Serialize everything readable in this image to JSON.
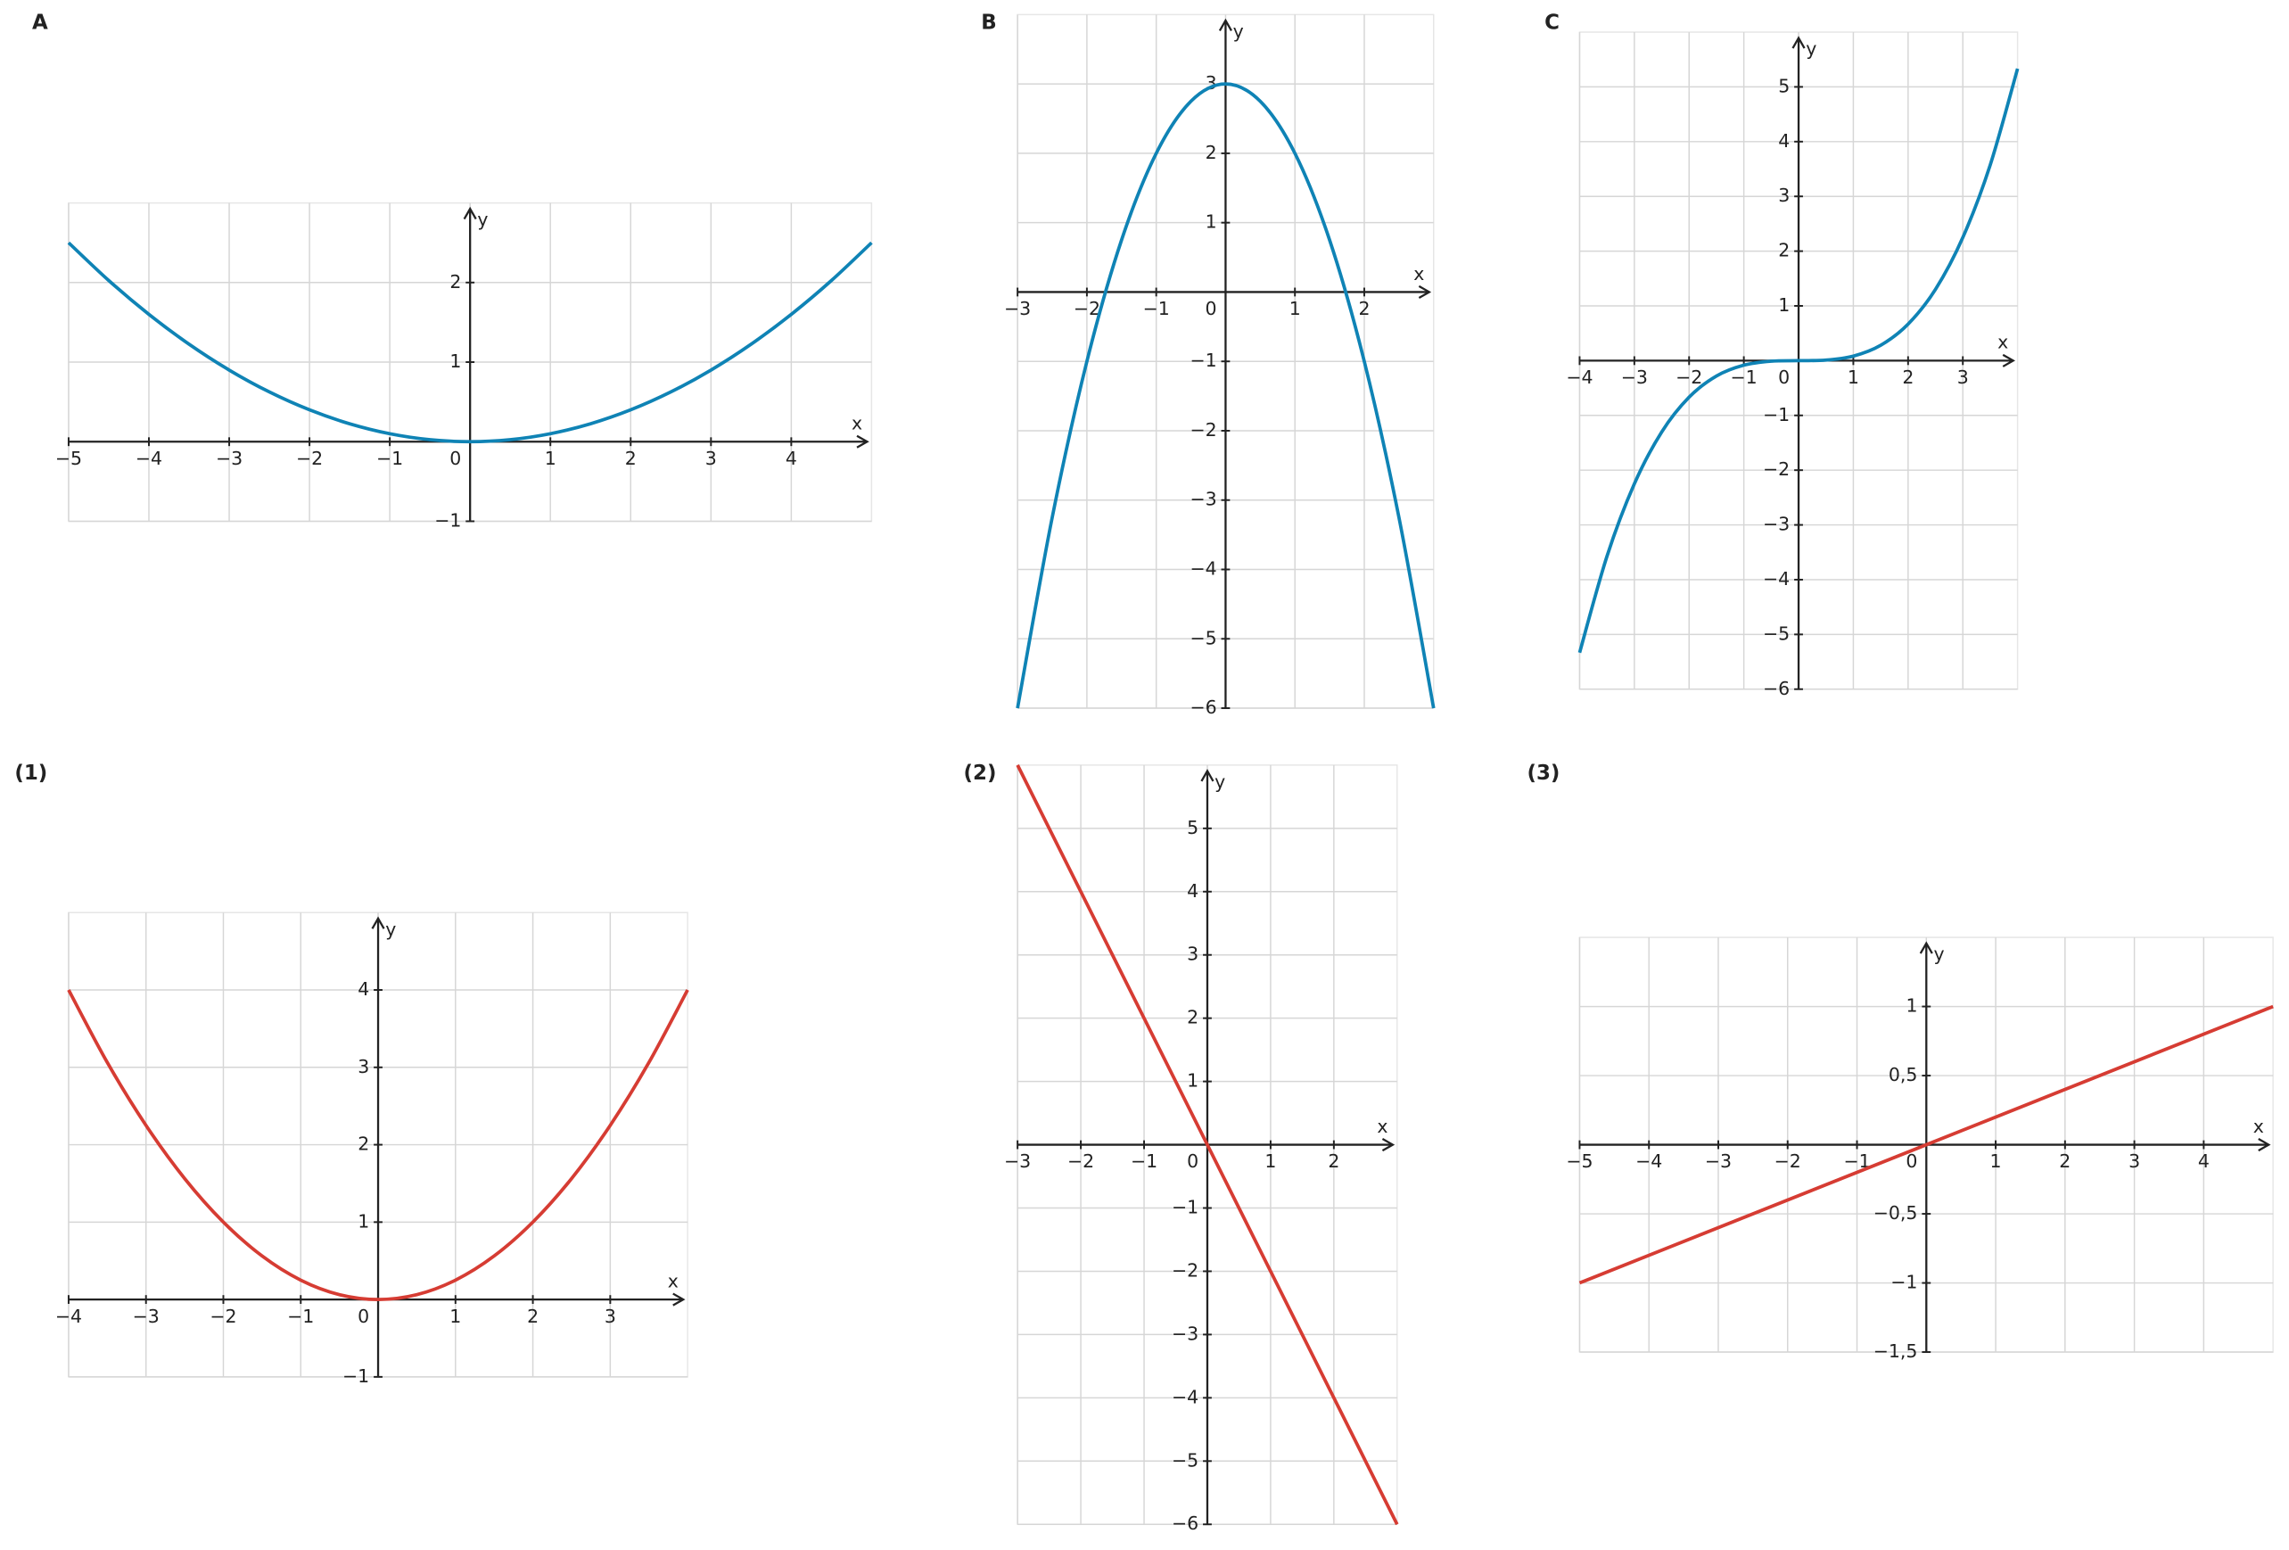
{
  "chart_data": [
    {
      "type": "line",
      "title": "A",
      "xlabel": "x",
      "ylabel": "y",
      "xlim": [
        -5,
        5
      ],
      "ylim": [
        -1,
        3
      ],
      "xticks": [
        {
          "value": -5,
          "label": "−5"
        },
        {
          "value": -4,
          "label": "−4"
        },
        {
          "value": -3,
          "label": "−3"
        },
        {
          "value": -2,
          "label": "−2"
        },
        {
          "value": -1,
          "label": "−1"
        },
        0,
        1,
        2,
        3,
        4
      ],
      "yticks": [
        {
          "value": -1,
          "label": "−1"
        },
        1,
        2
      ],
      "grid": true,
      "series": [
        {
          "color": "#0f83b5",
          "x": [
            -5,
            -4.5,
            -4,
            -3.5,
            -3,
            -2.5,
            -2,
            -1.5,
            -1,
            -0.5,
            0,
            0.5,
            1,
            1.5,
            2,
            2.5,
            3,
            3.5,
            4,
            4.5,
            5
          ],
          "values": [
            2.5,
            2.025,
            1.6,
            1.225,
            0.9,
            0.625,
            0.4,
            0.225,
            0.1,
            0.025,
            0,
            0.025,
            0.1,
            0.225,
            0.4,
            0.625,
            0.9,
            1.225,
            1.6,
            2.025,
            2.5
          ]
        }
      ]
    },
    {
      "type": "line",
      "title": "B",
      "xlabel": "x",
      "ylabel": "y",
      "xlim": [
        -3,
        3
      ],
      "ylim": [
        -6,
        4
      ],
      "xticks": [
        {
          "value": -3,
          "label": "−3"
        },
        {
          "value": -2,
          "label": "−2"
        },
        {
          "value": -1,
          "label": "−1"
        },
        0,
        1,
        2
      ],
      "yticks": [
        {
          "value": -6,
          "label": "−6"
        },
        {
          "value": -5,
          "label": "−5"
        },
        {
          "value": -4,
          "label": "−4"
        },
        {
          "value": -3,
          "label": "−3"
        },
        {
          "value": -2,
          "label": "−2"
        },
        {
          "value": -1,
          "label": "−1"
        },
        1,
        2,
        3
      ],
      "grid": true,
      "series": [
        {
          "color": "#0f83b5",
          "x": [
            -3,
            -2.5,
            -2,
            -1.5,
            -1,
            -0.5,
            0,
            0.5,
            1,
            1.5,
            2,
            2.5,
            3
          ],
          "values": [
            -6,
            -3.25,
            -1,
            0.75,
            2,
            2.75,
            3,
            2.75,
            2,
            0.75,
            -1,
            -3.25,
            -6
          ]
        }
      ]
    },
    {
      "type": "line",
      "title": "C",
      "xlabel": "x",
      "ylabel": "y",
      "xlim": [
        -4,
        4
      ],
      "ylim": [
        -6,
        6
      ],
      "xticks": [
        {
          "value": -4,
          "label": "−4"
        },
        {
          "value": -3,
          "label": "−3"
        },
        {
          "value": -2,
          "label": "−2"
        },
        {
          "value": -1,
          "label": "−1"
        },
        0,
        1,
        2,
        3
      ],
      "yticks": [
        {
          "value": -6,
          "label": "−6"
        },
        {
          "value": -5,
          "label": "−5"
        },
        {
          "value": -4,
          "label": "−4"
        },
        {
          "value": -3,
          "label": "−3"
        },
        {
          "value": -2,
          "label": "−2"
        },
        {
          "value": -1,
          "label": "−1"
        },
        1,
        2,
        3,
        4,
        5
      ],
      "grid": true,
      "series": [
        {
          "color": "#0f83b5",
          "x": [
            -4,
            -3.5,
            -3,
            -2.5,
            -2,
            -1.5,
            -1,
            -0.5,
            0,
            0.5,
            1,
            1.5,
            2,
            2.5,
            3,
            3.5,
            4
          ],
          "values": [
            -5.333,
            -3.573,
            -2.25,
            -1.302,
            -0.667,
            -0.281,
            -0.083,
            -0.01,
            0,
            0.01,
            0.083,
            0.281,
            0.667,
            1.302,
            2.25,
            3.573,
            5.333
          ]
        }
      ]
    },
    {
      "type": "line",
      "title": "(1)",
      "xlabel": "x",
      "ylabel": "y",
      "xlim": [
        -4,
        4
      ],
      "ylim": [
        -1,
        5
      ],
      "xticks": [
        {
          "value": -4,
          "label": "−4"
        },
        {
          "value": -3,
          "label": "−3"
        },
        {
          "value": -2,
          "label": "−2"
        },
        {
          "value": -1,
          "label": "−1"
        },
        0,
        1,
        2,
        3
      ],
      "yticks": [
        {
          "value": -1,
          "label": "−1"
        },
        1,
        2,
        3,
        4
      ],
      "grid": true,
      "series": [
        {
          "color": "#d63c33",
          "x": [
            -4,
            -3.5,
            -3,
            -2.5,
            -2,
            -1.5,
            -1,
            -0.5,
            0,
            0.5,
            1,
            1.5,
            2,
            2.5,
            3,
            3.5,
            4
          ],
          "values": [
            4,
            3.0625,
            2.25,
            1.5625,
            1,
            0.5625,
            0.25,
            0.0625,
            0,
            0.0625,
            0.25,
            0.5625,
            1,
            1.5625,
            2.25,
            3.0625,
            4
          ]
        }
      ]
    },
    {
      "type": "line",
      "title": "(2)",
      "xlabel": "x",
      "ylabel": "y",
      "xlim": [
        -3,
        3
      ],
      "ylim": [
        -6,
        6
      ],
      "xticks": [
        {
          "value": -3,
          "label": "−3"
        },
        {
          "value": -2,
          "label": "−2"
        },
        {
          "value": -1,
          "label": "−1"
        },
        0,
        1,
        2
      ],
      "yticks": [
        {
          "value": -6,
          "label": "−6"
        },
        {
          "value": -5,
          "label": "−5"
        },
        {
          "value": -4,
          "label": "−4"
        },
        {
          "value": -3,
          "label": "−3"
        },
        {
          "value": -2,
          "label": "−2"
        },
        {
          "value": -1,
          "label": "−1"
        },
        1,
        2,
        3,
        4,
        5
      ],
      "grid": true,
      "series": [
        {
          "color": "#d63c33",
          "x": [
            -3,
            3
          ],
          "values": [
            6,
            -6
          ]
        }
      ]
    },
    {
      "type": "line",
      "title": "(3)",
      "xlabel": "x",
      "ylabel": "y",
      "xlim": [
        -5,
        5
      ],
      "ylim": [
        -1.5,
        1.5
      ],
      "xticks": [
        {
          "value": -5,
          "label": "−5"
        },
        {
          "value": -4,
          "label": "−4"
        },
        {
          "value": -3,
          "label": "−3"
        },
        {
          "value": -2,
          "label": "−2"
        },
        {
          "value": -1,
          "label": "−1"
        },
        0,
        1,
        2,
        3,
        4
      ],
      "yticks": [
        {
          "value": -1.5,
          "label": "−1,5"
        },
        {
          "value": -1,
          "label": "−1"
        },
        {
          "value": -0.5,
          "label": "−0,5"
        },
        {
          "value": 0.5,
          "label": "0,5"
        },
        1
      ],
      "grid": true,
      "series": [
        {
          "color": "#d63c33",
          "x": [
            -5,
            5
          ],
          "values": [
            -1,
            1
          ]
        }
      ]
    }
  ]
}
